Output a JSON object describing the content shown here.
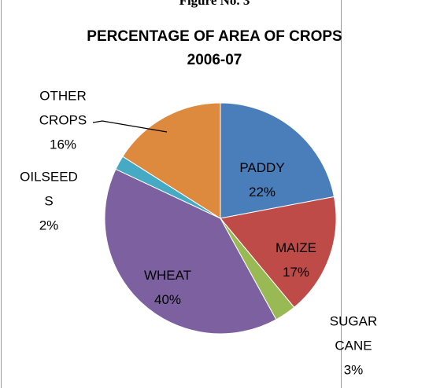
{
  "caption": "Figure No. 3",
  "chart_data": {
    "type": "pie",
    "title": [
      "PERCENTAGE OF AREA OF CROPS",
      "2006-07"
    ],
    "categories": [
      "PADDY",
      "MAIZE",
      "SUGARCANE",
      "WHEAT",
      "OILSEEDS",
      "OTHER CROPS"
    ],
    "values": [
      22,
      17,
      3,
      40,
      2,
      16
    ],
    "value_labels": [
      "22%",
      "17%",
      "3%",
      "40%",
      "2%",
      "16%"
    ],
    "colors": [
      "#4a7ebb",
      "#be4b48",
      "#98b954",
      "#7d60a0",
      "#46aac5",
      "#dd8a3e"
    ]
  }
}
